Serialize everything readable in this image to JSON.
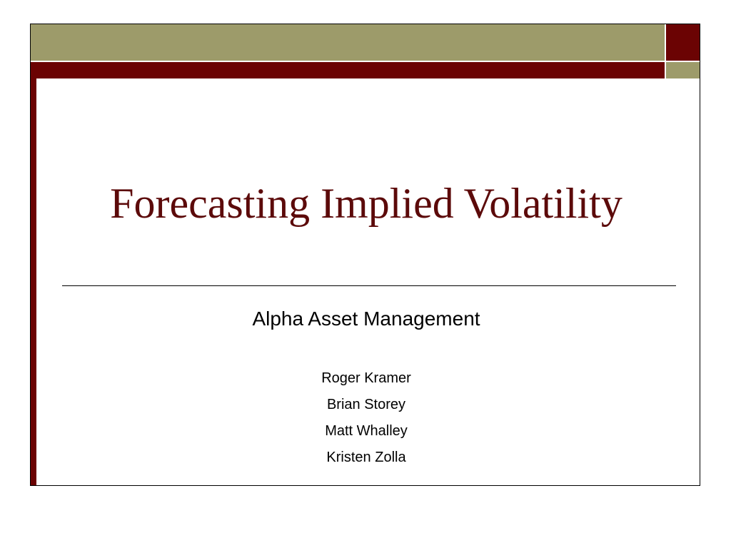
{
  "colors": {
    "olive": "#9d9b6a",
    "maroon": "#6b0303",
    "title_text": "#5c0a0a"
  },
  "slide": {
    "title": "Forecasting Implied Volatility",
    "organization": "Alpha Asset Management",
    "authors": [
      "Roger Kramer",
      "Brian Storey",
      "Matt Whalley",
      "Kristen Zolla"
    ]
  }
}
